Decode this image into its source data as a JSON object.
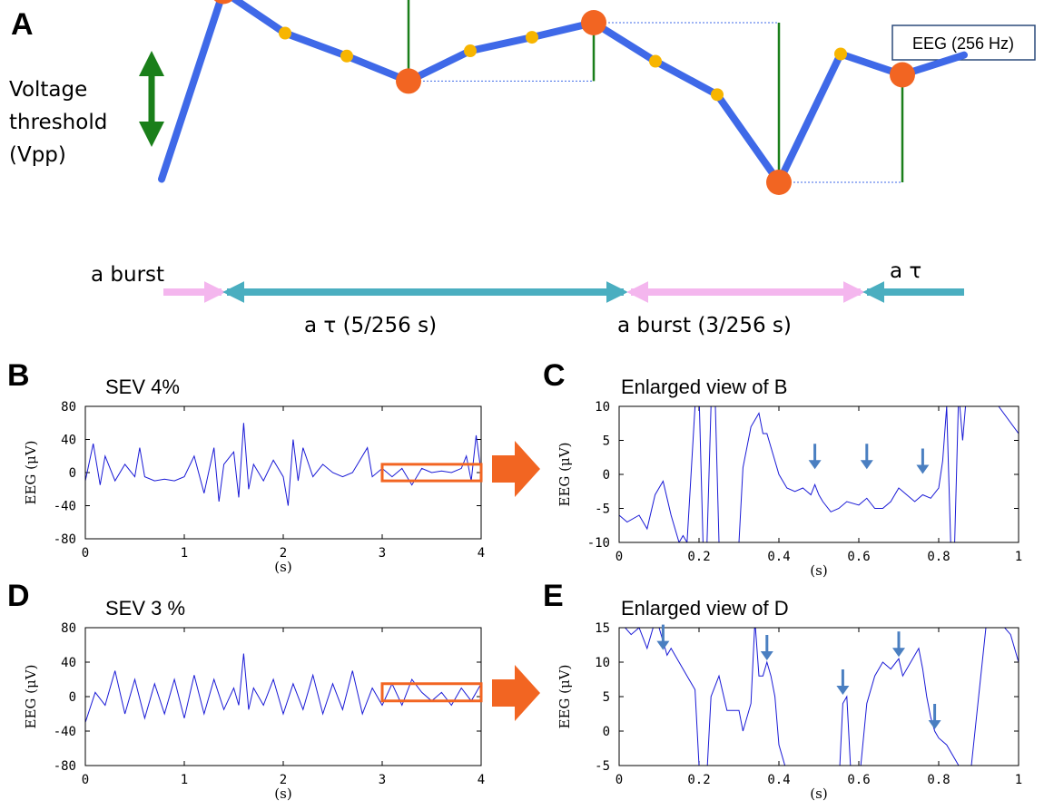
{
  "panels": {
    "A": "A",
    "B": "B",
    "C": "C",
    "D": "D",
    "E": "E"
  },
  "schematic": {
    "threshold_label": [
      "Voltage",
      "threshold",
      "(Vpp)"
    ],
    "eeg_box": "EEG (256 Hz)",
    "burst_label_left": "a burst",
    "tau_label_right": "a τ",
    "tau_label_mid": "a τ  (5/256 s)",
    "burst_label_mid": "a burst (3/256 s)",
    "colors": {
      "trace": "#3f69e8",
      "peak_marker": "#f26522",
      "mid_marker": "#f7b500",
      "vpp_line": "#1a7f1a",
      "burst_arrow": "#f4b6ee",
      "tau_arrow": "#4aaec0"
    },
    "signal": [
      -5,
      13,
      9,
      6.8,
      4.4,
      7.3,
      8.6,
      10,
      6.3,
      3.1,
      -5.3,
      7,
      5,
      6.9
    ],
    "peaks": [
      1,
      4,
      7,
      10,
      12
    ],
    "icons": [
      "threshold-double-arrow-icon"
    ]
  },
  "chart_data": [
    {
      "id": "B",
      "type": "line",
      "title": "SEV 4%",
      "xlabel": "(s)",
      "ylabel": "EEG (μV)",
      "xlim": [
        0,
        4
      ],
      "ylim": [
        -80,
        80
      ],
      "xticks": [
        "0",
        "1",
        "2",
        "3",
        "4"
      ],
      "yticks": [
        "80",
        "40",
        "0",
        "-40",
        "-80"
      ],
      "highlight": {
        "x": [
          3.0,
          4.0
        ],
        "y": [
          -10,
          10
        ]
      },
      "x": [
        0,
        0.08,
        0.15,
        0.2,
        0.3,
        0.4,
        0.5,
        0.55,
        0.6,
        0.7,
        0.8,
        0.9,
        1.0,
        1.1,
        1.2,
        1.3,
        1.35,
        1.4,
        1.5,
        1.55,
        1.6,
        1.65,
        1.7,
        1.8,
        1.9,
        2.0,
        2.05,
        2.1,
        2.15,
        2.2,
        2.3,
        2.4,
        2.5,
        2.6,
        2.7,
        2.8,
        2.85,
        2.9,
        3.0,
        3.1,
        3.2,
        3.3,
        3.4,
        3.5,
        3.6,
        3.7,
        3.8,
        3.85,
        3.9,
        3.95,
        4.0
      ],
      "y": [
        -10,
        35,
        -15,
        20,
        -10,
        10,
        -5,
        30,
        -5,
        -10,
        -8,
        -10,
        -5,
        20,
        -25,
        30,
        -35,
        10,
        25,
        -30,
        60,
        -20,
        10,
        -10,
        15,
        -5,
        -40,
        40,
        -10,
        30,
        -5,
        10,
        0,
        -5,
        0,
        20,
        30,
        -5,
        5,
        -5,
        5,
        -15,
        5,
        0,
        2,
        0,
        5,
        20,
        -10,
        45,
        0
      ]
    },
    {
      "id": "C",
      "type": "line",
      "title": "Enlarged view of B",
      "xlabel": "(s)",
      "ylabel": "EEG (μV)",
      "xlim": [
        0,
        1
      ],
      "ylim": [
        -10,
        10
      ],
      "xticks": [
        "0",
        "0.2",
        "0.4",
        "0.6",
        "0.8",
        "1"
      ],
      "yticks": [
        "10",
        "5",
        "0",
        "-5",
        "-10"
      ],
      "arrows_at": [
        [
          0.49,
          0.5
        ],
        [
          0.62,
          0.5
        ],
        [
          0.76,
          -0.2
        ]
      ],
      "x": [
        0,
        0.02,
        0.05,
        0.07,
        0.09,
        0.11,
        0.13,
        0.15,
        0.16,
        0.17,
        0.19,
        0.2,
        0.21,
        0.22,
        0.23,
        0.24,
        0.25,
        0.26,
        0.28,
        0.29,
        0.3,
        0.31,
        0.33,
        0.34,
        0.35,
        0.36,
        0.37,
        0.38,
        0.39,
        0.4,
        0.42,
        0.44,
        0.46,
        0.48,
        0.49,
        0.5,
        0.51,
        0.53,
        0.55,
        0.57,
        0.6,
        0.62,
        0.64,
        0.66,
        0.68,
        0.7,
        0.72,
        0.74,
        0.76,
        0.78,
        0.8,
        0.81,
        0.82,
        0.83,
        0.84,
        0.85,
        0.86,
        0.87,
        0.9,
        0.92,
        0.95,
        1.0
      ],
      "y": [
        -6,
        -7,
        -6,
        -8,
        -3,
        -1,
        -6,
        -10,
        -9,
        -10,
        10,
        12,
        -10,
        -10,
        10,
        12,
        -10,
        -10,
        -10,
        -12,
        -10,
        1,
        7,
        8,
        9,
        6,
        6,
        4,
        2,
        0,
        -2,
        -2.5,
        -2,
        -3,
        -1.5,
        -3,
        -4,
        -5.5,
        -5,
        -4,
        -4.5,
        -3.5,
        -5,
        -5,
        -4,
        -2,
        -3,
        -4,
        -3,
        -3.5,
        -2,
        2,
        10,
        -10,
        -10,
        12,
        5,
        12,
        12,
        12,
        10,
        6
      ]
    },
    {
      "id": "D",
      "type": "line",
      "title": "SEV 3 %",
      "xlabel": "(s)",
      "ylabel": "EEG (μV)",
      "xlim": [
        0,
        4
      ],
      "ylim": [
        -80,
        80
      ],
      "xticks": [
        "0",
        "1",
        "2",
        "3",
        "4"
      ],
      "yticks": [
        "80",
        "40",
        "0",
        "-40",
        "-80"
      ],
      "highlight": {
        "x": [
          3.0,
          4.0
        ],
        "y": [
          -5,
          15
        ]
      },
      "x": [
        0,
        0.1,
        0.2,
        0.3,
        0.4,
        0.5,
        0.6,
        0.7,
        0.8,
        0.9,
        1.0,
        1.1,
        1.2,
        1.3,
        1.4,
        1.5,
        1.55,
        1.6,
        1.65,
        1.7,
        1.8,
        1.9,
        2.0,
        2.1,
        2.2,
        2.3,
        2.4,
        2.5,
        2.6,
        2.7,
        2.8,
        2.9,
        3.0,
        3.1,
        3.2,
        3.3,
        3.4,
        3.5,
        3.6,
        3.7,
        3.8,
        3.9,
        4.0
      ],
      "y": [
        -30,
        5,
        -10,
        30,
        -20,
        20,
        -25,
        15,
        -20,
        20,
        -25,
        25,
        -20,
        20,
        -15,
        10,
        -10,
        50,
        -15,
        10,
        -10,
        20,
        -20,
        15,
        -15,
        25,
        -20,
        15,
        -15,
        30,
        -20,
        10,
        -10,
        15,
        -10,
        20,
        5,
        -5,
        5,
        -10,
        10,
        -5,
        15
      ]
    },
    {
      "id": "E",
      "type": "line",
      "title": "Enlarged view of D",
      "xlabel": "(s)",
      "ylabel": "EEG (μV)",
      "xlim": [
        0,
        1
      ],
      "ylim": [
        -5,
        15
      ],
      "xticks": [
        "0",
        "0.2",
        "0.4",
        "0.6",
        "0.8",
        "1"
      ],
      "yticks": [
        "15",
        "10",
        "5",
        "0",
        "-5"
      ],
      "arrows_at": [
        [
          0.11,
          11.5
        ],
        [
          0.37,
          10
        ],
        [
          0.56,
          5
        ],
        [
          0.7,
          10.5
        ],
        [
          0.79,
          0
        ]
      ],
      "x": [
        0,
        0.03,
        0.05,
        0.07,
        0.09,
        0.1,
        0.12,
        0.13,
        0.15,
        0.17,
        0.19,
        0.2,
        0.22,
        0.23,
        0.25,
        0.27,
        0.3,
        0.31,
        0.33,
        0.34,
        0.35,
        0.36,
        0.37,
        0.38,
        0.39,
        0.4,
        0.42,
        0.5,
        0.55,
        0.56,
        0.57,
        0.58,
        0.6,
        0.62,
        0.64,
        0.66,
        0.68,
        0.7,
        0.71,
        0.73,
        0.75,
        0.76,
        0.77,
        0.78,
        0.79,
        0.8,
        0.82,
        0.85,
        0.88,
        0.9,
        0.92,
        0.95,
        0.98,
        1.0
      ],
      "y": [
        16,
        14,
        15,
        12,
        16,
        15,
        11,
        12,
        10,
        8,
        6,
        -5,
        -6,
        5,
        8,
        3,
        3,
        0,
        4,
        16,
        8,
        8,
        10,
        8,
        5,
        -2,
        -6,
        -6,
        -8,
        4,
        5,
        -6,
        -8,
        4,
        8,
        10,
        9,
        10.5,
        8,
        10,
        12,
        9,
        5,
        2,
        0,
        -1,
        -2,
        -5,
        -6,
        5,
        16,
        16,
        14,
        10
      ]
    }
  ]
}
